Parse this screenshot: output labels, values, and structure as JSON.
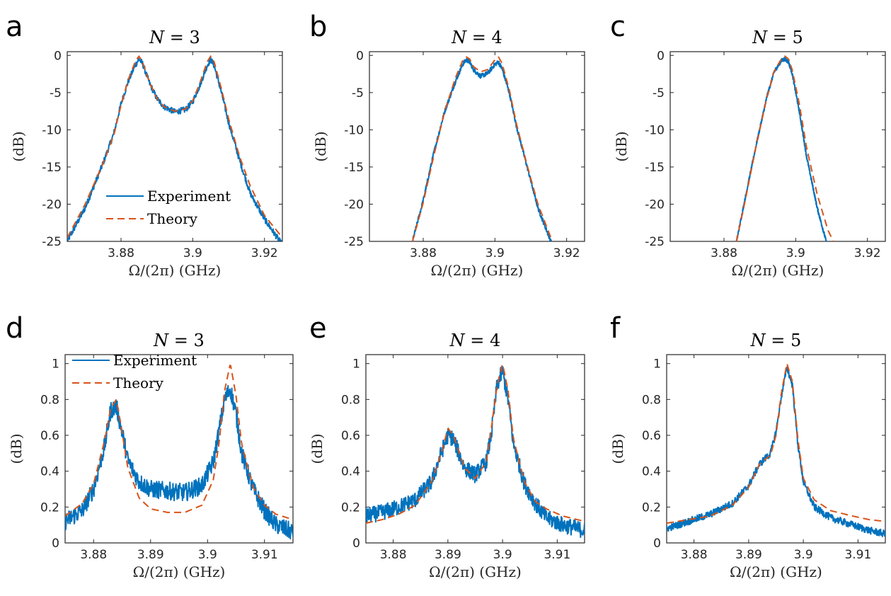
{
  "colors": {
    "experiment": "#0072BD",
    "theory": "#D95319",
    "axis": "#262626"
  },
  "chart_data": [
    {
      "panel": "a",
      "type": "line",
      "title": "N = 3",
      "xlabel": "Ω/(2π) (GHz)",
      "ylabel": "(dB)",
      "xlim": [
        3.865,
        3.925
      ],
      "ylim": [
        -25,
        0.5
      ],
      "xticks": [
        3.88,
        3.9,
        3.92
      ],
      "xtick_labels": [
        "3.88",
        "3.9",
        "3.92"
      ],
      "yticks": [
        0,
        -5,
        -10,
        -15,
        -20,
        -25
      ],
      "ytick_labels": [
        "0",
        "-5",
        "-10",
        "-15",
        "-20",
        "-25"
      ],
      "legend": {
        "position": "lower-left",
        "entries": [
          "Experiment",
          "Theory"
        ]
      },
      "series": [
        {
          "name": "Experiment",
          "style": "solid",
          "noise": 0.4,
          "x": [
            3.865,
            3.87,
            3.875,
            3.878,
            3.88,
            3.882,
            3.884,
            3.885,
            3.886,
            3.888,
            3.89,
            3.892,
            3.895,
            3.898,
            3.9,
            3.902,
            3.904,
            3.905,
            3.906,
            3.908,
            3.91,
            3.913,
            3.916,
            3.92,
            3.925
          ],
          "y": [
            -25,
            -20.5,
            -14.5,
            -10.5,
            -6.5,
            -3.5,
            -1.3,
            -0.5,
            -1.1,
            -3.8,
            -5.8,
            -6.9,
            -7.6,
            -7.3,
            -6.2,
            -4,
            -1.4,
            -0.5,
            -1.4,
            -5,
            -9,
            -14,
            -18.5,
            -22,
            -25.5
          ]
        },
        {
          "name": "Theory",
          "style": "dashed",
          "noise": 0,
          "x": [
            3.865,
            3.87,
            3.875,
            3.878,
            3.88,
            3.882,
            3.884,
            3.885,
            3.886,
            3.888,
            3.89,
            3.892,
            3.895,
            3.898,
            3.9,
            3.902,
            3.904,
            3.905,
            3.906,
            3.908,
            3.91,
            3.913,
            3.916,
            3.92,
            3.925
          ],
          "y": [
            -24.5,
            -20,
            -14.5,
            -10.7,
            -6.7,
            -3.3,
            -0.8,
            -0.1,
            -0.9,
            -3.7,
            -5.8,
            -6.9,
            -7.5,
            -7.2,
            -6.1,
            -3.7,
            -0.9,
            -0.1,
            -0.9,
            -4.5,
            -8.5,
            -13.5,
            -17.5,
            -21.5,
            -24.5
          ]
        }
      ]
    },
    {
      "panel": "b",
      "type": "line",
      "title": "N = 4",
      "xlabel": "Ω/(2π) (GHz)",
      "ylabel": "(dB)",
      "xlim": [
        3.865,
        3.925
      ],
      "ylim": [
        -25,
        0.5
      ],
      "xticks": [
        3.88,
        3.9,
        3.92
      ],
      "xtick_labels": [
        "3.88",
        "3.9",
        "3.92"
      ],
      "yticks": [
        0,
        -5,
        -10,
        -15,
        -20,
        -25
      ],
      "ytick_labels": [
        "0",
        "-5",
        "-10",
        "-15",
        "-20",
        "-25"
      ],
      "series": [
        {
          "name": "Experiment",
          "style": "solid",
          "noise": 0.3,
          "x": [
            3.877,
            3.88,
            3.883,
            3.886,
            3.889,
            3.891,
            3.892,
            3.893,
            3.894,
            3.896,
            3.898,
            3.9,
            3.901,
            3.902,
            3.904,
            3.906,
            3.909,
            3.912,
            3.916
          ],
          "y": [
            -25,
            -19.5,
            -13,
            -7.5,
            -3.5,
            -1.2,
            -0.6,
            -0.9,
            -1.9,
            -2.8,
            -2.4,
            -1.2,
            -0.9,
            -1.8,
            -5,
            -9.5,
            -15,
            -20.5,
            -25.5
          ]
        },
        {
          "name": "Theory",
          "style": "dashed",
          "noise": 0,
          "x": [
            3.877,
            3.88,
            3.883,
            3.886,
            3.889,
            3.891,
            3.892,
            3.893,
            3.894,
            3.896,
            3.898,
            3.9,
            3.901,
            3.902,
            3.904,
            3.906,
            3.909,
            3.912,
            3.916
          ],
          "y": [
            -25,
            -19.8,
            -13.4,
            -7.5,
            -3,
            -0.7,
            -0.2,
            -0.5,
            -1.5,
            -2.2,
            -1.9,
            -0.6,
            -0.2,
            -1.1,
            -4.6,
            -9.2,
            -14.8,
            -20,
            -25
          ]
        }
      ]
    },
    {
      "panel": "c",
      "type": "line",
      "title": "N = 5",
      "xlabel": "Ω/(2π) (GHz)",
      "ylabel": "(dB)",
      "xlim": [
        3.865,
        3.925
      ],
      "ylim": [
        -25,
        0.5
      ],
      "xticks": [
        3.88,
        3.9,
        3.92
      ],
      "xtick_labels": [
        "3.88",
        "3.9",
        "3.92"
      ],
      "yticks": [
        0,
        -5,
        -10,
        -15,
        -20,
        -25
      ],
      "ytick_labels": [
        "0",
        "-5",
        "-10",
        "-15",
        "-20",
        "-25"
      ],
      "series": [
        {
          "name": "Experiment",
          "style": "solid",
          "noise": 0.25,
          "x": [
            3.8835,
            3.886,
            3.889,
            3.892,
            3.894,
            3.896,
            3.897,
            3.898,
            3.899,
            3.901,
            3.903,
            3.906,
            3.9085
          ],
          "y": [
            -25,
            -19,
            -12,
            -5.5,
            -2.2,
            -0.7,
            -0.5,
            -0.9,
            -2.4,
            -7.5,
            -13.5,
            -20.5,
            -25
          ]
        },
        {
          "name": "Theory",
          "style": "dashed",
          "noise": 0,
          "x": [
            3.8835,
            3.886,
            3.889,
            3.892,
            3.894,
            3.896,
            3.897,
            3.898,
            3.899,
            3.901,
            3.903,
            3.906,
            3.909,
            3.9105
          ],
          "y": [
            -25,
            -19.3,
            -12.1,
            -5.6,
            -2.1,
            -0.5,
            -0.1,
            -0.5,
            -1.9,
            -6.5,
            -12.3,
            -18.7,
            -23.5,
            -25
          ]
        }
      ]
    },
    {
      "panel": "d",
      "type": "line",
      "title": "N = 3",
      "xlabel": "Ω/(2π) (GHz)",
      "ylabel": "(dB)",
      "xlim": [
        3.875,
        3.915
      ],
      "ylim": [
        0,
        1.05
      ],
      "xticks": [
        3.88,
        3.89,
        3.9,
        3.91
      ],
      "xtick_labels": [
        "3.88",
        "3.89",
        "3.9",
        "3.91"
      ],
      "yticks": [
        0,
        0.2,
        0.4,
        0.6,
        0.8,
        1
      ],
      "ytick_labels": [
        "0",
        "0.2",
        "0.4",
        "0.6",
        "0.8",
        "1"
      ],
      "legend": {
        "position": "top-left",
        "entries": [
          "Experiment",
          "Theory"
        ]
      },
      "series": [
        {
          "name": "Experiment",
          "style": "solid",
          "noise": 0.05,
          "x": [
            3.875,
            3.878,
            3.88,
            3.882,
            3.883,
            3.884,
            3.885,
            3.886,
            3.888,
            3.89,
            3.893,
            3.896,
            3.899,
            3.901,
            3.902,
            3.903,
            3.904,
            3.905,
            3.906,
            3.908,
            3.91,
            3.912,
            3.915
          ],
          "y": [
            0.12,
            0.18,
            0.3,
            0.55,
            0.74,
            0.76,
            0.62,
            0.46,
            0.34,
            0.3,
            0.29,
            0.28,
            0.32,
            0.45,
            0.62,
            0.8,
            0.86,
            0.72,
            0.5,
            0.3,
            0.18,
            0.1,
            0.06
          ]
        },
        {
          "name": "Theory",
          "style": "dashed",
          "noise": 0,
          "x": [
            3.875,
            3.878,
            3.88,
            3.882,
            3.883,
            3.884,
            3.885,
            3.886,
            3.888,
            3.89,
            3.893,
            3.896,
            3.899,
            3.901,
            3.902,
            3.903,
            3.904,
            3.905,
            3.906,
            3.908,
            3.91,
            3.912,
            3.915
          ],
          "y": [
            0.15,
            0.22,
            0.33,
            0.58,
            0.75,
            0.8,
            0.62,
            0.42,
            0.25,
            0.19,
            0.17,
            0.17,
            0.21,
            0.35,
            0.55,
            0.85,
            1.0,
            0.82,
            0.55,
            0.31,
            0.21,
            0.16,
            0.13
          ]
        }
      ]
    },
    {
      "panel": "e",
      "type": "line",
      "title": "N = 4",
      "xlabel": "Ω/(2π) (GHz)",
      "ylabel": "(dB)",
      "xlim": [
        3.875,
        3.915
      ],
      "ylim": [
        0,
        1.05
      ],
      "xticks": [
        3.88,
        3.89,
        3.9,
        3.91
      ],
      "xtick_labels": [
        "3.88",
        "3.89",
        "3.9",
        "3.91"
      ],
      "yticks": [
        0,
        0.2,
        0.4,
        0.6,
        0.8,
        1
      ],
      "ytick_labels": [
        "0",
        "0.2",
        "0.4",
        "0.6",
        "0.8",
        "1"
      ],
      "series": [
        {
          "name": "Experiment",
          "style": "solid",
          "noise": 0.045,
          "x": [
            3.875,
            3.878,
            3.881,
            3.884,
            3.887,
            3.889,
            3.89,
            3.891,
            3.893,
            3.895,
            3.897,
            3.898,
            3.899,
            3.9,
            3.901,
            3.902,
            3.904,
            3.906,
            3.908,
            3.911,
            3.915
          ],
          "y": [
            0.15,
            0.17,
            0.2,
            0.24,
            0.34,
            0.52,
            0.6,
            0.58,
            0.42,
            0.38,
            0.45,
            0.62,
            0.88,
            0.96,
            0.8,
            0.55,
            0.33,
            0.22,
            0.14,
            0.1,
            0.07
          ]
        },
        {
          "name": "Theory",
          "style": "dashed",
          "noise": 0,
          "x": [
            3.875,
            3.878,
            3.881,
            3.884,
            3.887,
            3.889,
            3.89,
            3.891,
            3.893,
            3.895,
            3.897,
            3.898,
            3.899,
            3.9,
            3.901,
            3.902,
            3.904,
            3.906,
            3.908,
            3.911,
            3.915
          ],
          "y": [
            0.11,
            0.13,
            0.16,
            0.21,
            0.34,
            0.52,
            0.64,
            0.6,
            0.42,
            0.36,
            0.45,
            0.65,
            0.88,
            1.0,
            0.85,
            0.58,
            0.34,
            0.23,
            0.19,
            0.15,
            0.12
          ]
        }
      ]
    },
    {
      "panel": "f",
      "type": "line",
      "title": "N = 5",
      "xlabel": "Ω/(2π) (GHz)",
      "ylabel": "(dB)",
      "xlim": [
        3.875,
        3.915
      ],
      "ylim": [
        0,
        1.05
      ],
      "xticks": [
        3.88,
        3.89,
        3.9,
        3.91
      ],
      "xtick_labels": [
        "3.88",
        "3.89",
        "3.9",
        "3.91"
      ],
      "yticks": [
        0,
        0.2,
        0.4,
        0.6,
        0.8,
        1
      ],
      "ytick_labels": [
        "0",
        "0.2",
        "0.4",
        "0.6",
        "0.8",
        "1"
      ],
      "series": [
        {
          "name": "Experiment",
          "style": "solid",
          "noise": 0.02,
          "x": [
            3.875,
            3.879,
            3.883,
            3.887,
            3.89,
            3.892,
            3.894,
            3.895,
            3.896,
            3.897,
            3.898,
            3.899,
            3.9,
            3.902,
            3.905,
            3.909,
            3.912,
            3.915
          ],
          "y": [
            0.08,
            0.12,
            0.16,
            0.22,
            0.32,
            0.44,
            0.5,
            0.62,
            0.82,
            0.98,
            0.88,
            0.55,
            0.34,
            0.2,
            0.14,
            0.1,
            0.07,
            0.05
          ]
        },
        {
          "name": "Theory",
          "style": "dashed",
          "noise": 0,
          "x": [
            3.875,
            3.879,
            3.883,
            3.887,
            3.89,
            3.892,
            3.894,
            3.895,
            3.896,
            3.897,
            3.898,
            3.899,
            3.9,
            3.902,
            3.905,
            3.909,
            3.912,
            3.915
          ],
          "y": [
            0.11,
            0.13,
            0.15,
            0.21,
            0.31,
            0.44,
            0.49,
            0.6,
            0.84,
            1.0,
            0.9,
            0.58,
            0.36,
            0.24,
            0.18,
            0.15,
            0.13,
            0.12
          ]
        }
      ]
    }
  ]
}
